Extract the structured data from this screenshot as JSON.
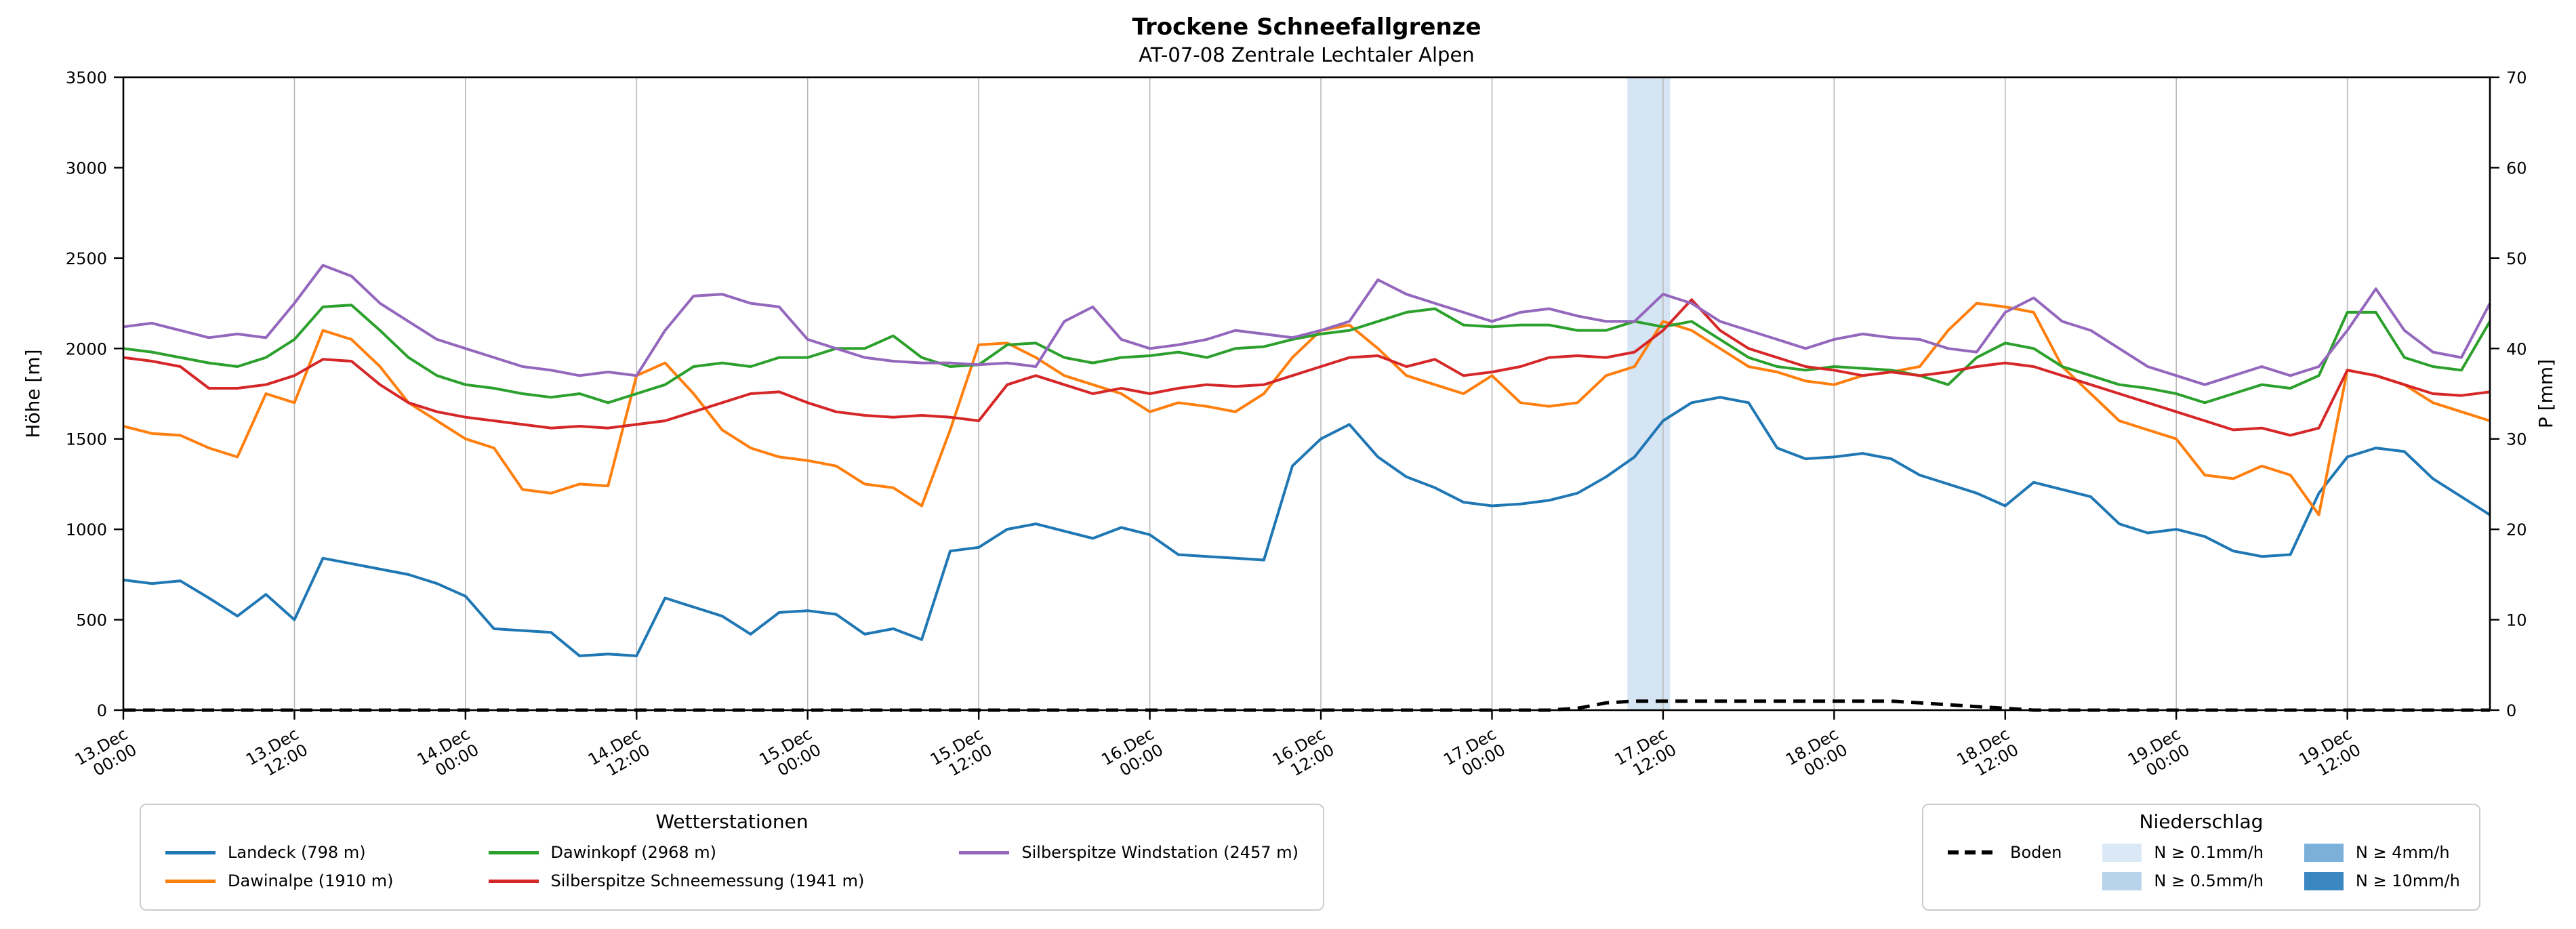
{
  "chart_data": {
    "type": "line",
    "title": "Trockene Schneefallgrenze",
    "subtitle": "AT-07-08 Zentrale Lechtaler Alpen",
    "xlabel": "",
    "ylabel": "Höhe [m]",
    "ylabel_right": "P [mm]",
    "ylim": [
      0,
      3500
    ],
    "y_tick_step": 500,
    "ylim_right": [
      0,
      70
    ],
    "y_right_tick_step": 10,
    "grid": "vertical",
    "x_unit": "hours since 13.Dec 00:00",
    "x_start": 0,
    "x_step": 2,
    "x_max": 166,
    "x_ticks": [
      {
        "h": 0,
        "date": "13.Dec",
        "time": "00:00"
      },
      {
        "h": 12,
        "date": "13.Dec",
        "time": "12:00"
      },
      {
        "h": 24,
        "date": "14.Dec",
        "time": "00:00"
      },
      {
        "h": 36,
        "date": "14.Dec",
        "time": "12:00"
      },
      {
        "h": 48,
        "date": "15.Dec",
        "time": "00:00"
      },
      {
        "h": 60,
        "date": "15.Dec",
        "time": "12:00"
      },
      {
        "h": 72,
        "date": "16.Dec",
        "time": "00:00"
      },
      {
        "h": 84,
        "date": "16.Dec",
        "time": "12:00"
      },
      {
        "h": 96,
        "date": "17.Dec",
        "time": "00:00"
      },
      {
        "h": 108,
        "date": "17.Dec",
        "time": "12:00"
      },
      {
        "h": 120,
        "date": "18.Dec",
        "time": "00:00"
      },
      {
        "h": 132,
        "date": "18.Dec",
        "time": "12:00"
      },
      {
        "h": 144,
        "date": "19.Dec",
        "time": "00:00"
      },
      {
        "h": 156,
        "date": "19.Dec",
        "time": "12:00"
      }
    ],
    "series": [
      {
        "name": "Landeck (798 m)",
        "color": "#1f77b4",
        "style": "solid",
        "values": [
          720,
          700,
          715,
          620,
          520,
          640,
          500,
          840,
          810,
          780,
          750,
          700,
          630,
          450,
          440,
          430,
          300,
          310,
          300,
          620,
          570,
          520,
          420,
          540,
          550,
          530,
          420,
          450,
          390,
          880,
          900,
          1000,
          1030,
          990,
          950,
          1010,
          970,
          860,
          850,
          840,
          830,
          1350,
          1500,
          1580,
          1400,
          1290,
          1230,
          1150,
          1130,
          1140,
          1160,
          1200,
          1290,
          1400,
          1600,
          1700,
          1730,
          1700,
          1450,
          1390,
          1400,
          1420,
          1390,
          1300,
          1250,
          1200,
          1130,
          1260,
          1220,
          1180,
          1030,
          980,
          1000,
          960,
          880,
          850,
          860,
          1200,
          1400,
          1450,
          1430,
          1280,
          1180,
          1080
        ]
      },
      {
        "name": "Dawinalpe (1910 m)",
        "color": "#ff7f0e",
        "style": "solid",
        "values": [
          1570,
          1530,
          1520,
          1450,
          1400,
          1750,
          1700,
          2100,
          2050,
          1900,
          1700,
          1600,
          1500,
          1450,
          1220,
          1200,
          1250,
          1240,
          1850,
          1920,
          1750,
          1550,
          1450,
          1400,
          1380,
          1350,
          1250,
          1230,
          1130,
          1550,
          2020,
          2030,
          1950,
          1850,
          1800,
          1750,
          1650,
          1700,
          1680,
          1650,
          1750,
          1950,
          2100,
          2130,
          2000,
          1850,
          1800,
          1750,
          1850,
          1700,
          1680,
          1700,
          1850,
          1900,
          2150,
          2100,
          2000,
          1900,
          1870,
          1820,
          1800,
          1850,
          1870,
          1900,
          2100,
          2250,
          2230,
          2200,
          1900,
          1750,
          1600,
          1550,
          1500,
          1300,
          1280,
          1350,
          1300,
          1080,
          1880,
          1850,
          1800,
          1700,
          1650,
          1600
        ]
      },
      {
        "name": "Dawinkopf (2968 m)",
        "color": "#2ca02c",
        "style": "solid",
        "values": [
          2000,
          1980,
          1950,
          1920,
          1900,
          1950,
          2050,
          2230,
          2240,
          2100,
          1950,
          1850,
          1800,
          1780,
          1750,
          1730,
          1750,
          1700,
          1750,
          1800,
          1900,
          1920,
          1900,
          1950,
          1950,
          2000,
          2000,
          2070,
          1950,
          1900,
          1910,
          2020,
          2030,
          1950,
          1920,
          1950,
          1960,
          1980,
          1950,
          2000,
          2010,
          2050,
          2080,
          2100,
          2150,
          2200,
          2220,
          2130,
          2120,
          2130,
          2130,
          2100,
          2100,
          2150,
          2120,
          2150,
          2050,
          1950,
          1900,
          1880,
          1900,
          1890,
          1880,
          1850,
          1800,
          1950,
          2030,
          2000,
          1900,
          1850,
          1800,
          1780,
          1750,
          1700,
          1750,
          1800,
          1780,
          1850,
          2200,
          2200,
          1950,
          1900,
          1880,
          2150
        ]
      },
      {
        "name": "Silberspitze Schneemessung (1941 m)",
        "color": "#d62728",
        "style": "solid",
        "values": [
          1950,
          1930,
          1900,
          1780,
          1780,
          1800,
          1850,
          1940,
          1930,
          1800,
          1700,
          1650,
          1620,
          1600,
          1580,
          1560,
          1570,
          1560,
          1580,
          1600,
          1650,
          1700,
          1750,
          1760,
          1700,
          1650,
          1630,
          1620,
          1630,
          1620,
          1600,
          1800,
          1850,
          1800,
          1750,
          1780,
          1750,
          1780,
          1800,
          1790,
          1800,
          1850,
          1900,
          1950,
          1960,
          1900,
          1940,
          1850,
          1870,
          1900,
          1950,
          1960,
          1950,
          1980,
          2100,
          2270,
          2100,
          2000,
          1950,
          1900,
          1880,
          1850,
          1870,
          1850,
          1870,
          1900,
          1920,
          1900,
          1850,
          1800,
          1750,
          1700,
          1650,
          1600,
          1550,
          1560,
          1520,
          1560,
          1880,
          1850,
          1800,
          1750,
          1740,
          1760
        ]
      },
      {
        "name": "Silberspitze Windstation (2457 m)",
        "color": "#9467bd",
        "style": "solid",
        "values": [
          2120,
          2140,
          2100,
          2060,
          2080,
          2060,
          2250,
          2460,
          2400,
          2250,
          2150,
          2050,
          2000,
          1950,
          1900,
          1880,
          1850,
          1870,
          1850,
          2100,
          2290,
          2300,
          2250,
          2230,
          2050,
          2000,
          1950,
          1930,
          1920,
          1920,
          1910,
          1920,
          1900,
          2150,
          2230,
          2050,
          2000,
          2020,
          2050,
          2100,
          2080,
          2060,
          2100,
          2150,
          2380,
          2300,
          2250,
          2200,
          2150,
          2200,
          2220,
          2180,
          2150,
          2150,
          2300,
          2250,
          2150,
          2100,
          2050,
          2000,
          2050,
          2080,
          2060,
          2050,
          2000,
          1980,
          2200,
          2280,
          2150,
          2100,
          2000,
          1900,
          1850,
          1800,
          1850,
          1900,
          1850,
          1900,
          2100,
          2330,
          2100,
          1980,
          1950,
          2250
        ]
      },
      {
        "name": "Boden",
        "color": "#000000",
        "style": "dashed",
        "values": [
          0,
          0,
          0,
          0,
          0,
          0,
          0,
          0,
          0,
          0,
          0,
          0,
          0,
          0,
          0,
          0,
          0,
          0,
          0,
          0,
          0,
          0,
          0,
          0,
          0,
          0,
          0,
          0,
          0,
          0,
          0,
          0,
          0,
          0,
          0,
          0,
          0,
          0,
          0,
          0,
          0,
          0,
          0,
          0,
          0,
          0,
          0,
          0,
          0,
          0,
          0,
          10,
          40,
          50,
          50,
          50,
          50,
          50,
          50,
          50,
          50,
          50,
          50,
          40,
          30,
          20,
          10,
          0,
          0,
          0,
          0,
          0,
          0,
          0,
          0,
          0,
          0,
          0,
          0,
          0,
          0,
          0,
          0,
          0
        ]
      }
    ],
    "precipitation_bands": [
      {
        "start_h": 105.5,
        "end_h": 108.5,
        "class": "N ≥ 0.1mm/h",
        "color": "#cfe1f2"
      }
    ]
  },
  "axes": {
    "y_left": {
      "label": "Höhe [m]"
    },
    "y_right": {
      "label": "P [mm]"
    }
  },
  "legend_stations": {
    "title": "Wetterstationen",
    "items": [
      {
        "label": "Landeck (798 m)",
        "color": "#1f77b4"
      },
      {
        "label": "Dawinalpe (1910 m)",
        "color": "#ff7f0e"
      },
      {
        "label": "Dawinkopf (2968 m)",
        "color": "#2ca02c"
      },
      {
        "label": "Silberspitze Schneemessung (1941 m)",
        "color": "#d62728"
      },
      {
        "label": "Silberspitze Windstation (2457 m)",
        "color": "#9467bd"
      }
    ]
  },
  "legend_precip": {
    "title": "Niederschlag",
    "boden": {
      "label": "Boden",
      "color": "#000000"
    },
    "classes": [
      {
        "label": "N ≥ 0.1mm/h",
        "color": "#dbe9f6"
      },
      {
        "label": "N ≥ 0.5mm/h",
        "color": "#b8d4ec"
      },
      {
        "label": "N ≥ 4mm/h",
        "color": "#7ab0d9"
      },
      {
        "label": "N ≥ 10mm/h",
        "color": "#3a87c2"
      }
    ]
  }
}
